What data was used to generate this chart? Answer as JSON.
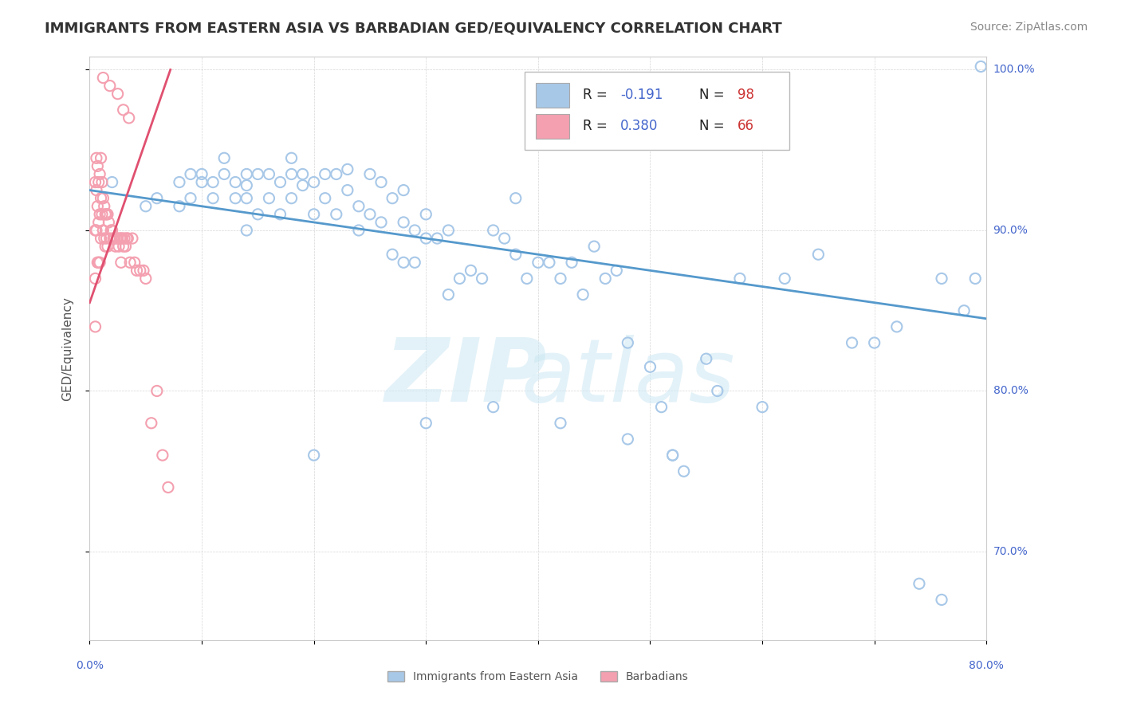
{
  "title": "IMMIGRANTS FROM EASTERN ASIA VS BARBADIAN GED/EQUIVALENCY CORRELATION CHART",
  "source": "Source: ZipAtlas.com",
  "ylabel": "GED/Equivalency",
  "xlim": [
    0.0,
    0.8
  ],
  "ylim": [
    0.645,
    1.008
  ],
  "y_ticks": [
    0.7,
    0.8,
    0.9,
    1.0
  ],
  "y_tick_labels": [
    "70.0%",
    "80.0%",
    "90.0%",
    "100.0%"
  ],
  "blue_color": "#a8c8e8",
  "pink_color": "#f4a0b0",
  "blue_line_color": "#5599cc",
  "pink_line_color": "#e05070",
  "axis_label_color": "#4466cc",
  "n_value_color": "#cc3333",
  "blue_scatter_x": [
    0.02,
    0.05,
    0.06,
    0.08,
    0.08,
    0.09,
    0.09,
    0.1,
    0.1,
    0.11,
    0.11,
    0.12,
    0.12,
    0.13,
    0.13,
    0.14,
    0.14,
    0.14,
    0.15,
    0.15,
    0.16,
    0.16,
    0.17,
    0.17,
    0.18,
    0.18,
    0.18,
    0.19,
    0.19,
    0.2,
    0.2,
    0.21,
    0.21,
    0.22,
    0.22,
    0.23,
    0.23,
    0.24,
    0.24,
    0.25,
    0.25,
    0.26,
    0.26,
    0.27,
    0.27,
    0.28,
    0.28,
    0.29,
    0.29,
    0.3,
    0.3,
    0.31,
    0.32,
    0.33,
    0.34,
    0.35,
    0.36,
    0.37,
    0.38,
    0.39,
    0.4,
    0.41,
    0.42,
    0.43,
    0.44,
    0.45,
    0.46,
    0.47,
    0.48,
    0.5,
    0.51,
    0.52,
    0.53,
    0.55,
    0.56,
    0.58,
    0.6,
    0.62,
    0.65,
    0.68,
    0.7,
    0.72,
    0.74,
    0.76,
    0.78,
    0.79,
    0.795,
    0.76,
    0.52,
    0.38,
    0.3,
    0.28,
    0.36,
    0.42,
    0.48,
    0.32,
    0.2,
    0.14
  ],
  "blue_scatter_y": [
    0.93,
    0.915,
    0.92,
    0.93,
    0.915,
    0.935,
    0.92,
    0.935,
    0.93,
    0.92,
    0.93,
    0.935,
    0.945,
    0.93,
    0.92,
    0.935,
    0.928,
    0.92,
    0.935,
    0.91,
    0.935,
    0.92,
    0.93,
    0.91,
    0.945,
    0.935,
    0.92,
    0.935,
    0.928,
    0.93,
    0.91,
    0.935,
    0.92,
    0.935,
    0.91,
    0.938,
    0.925,
    0.915,
    0.9,
    0.935,
    0.91,
    0.93,
    0.905,
    0.92,
    0.885,
    0.925,
    0.905,
    0.9,
    0.88,
    0.91,
    0.895,
    0.895,
    0.9,
    0.87,
    0.875,
    0.87,
    0.9,
    0.895,
    0.885,
    0.87,
    0.88,
    0.88,
    0.87,
    0.88,
    0.86,
    0.89,
    0.87,
    0.875,
    0.83,
    0.815,
    0.79,
    0.76,
    0.75,
    0.82,
    0.8,
    0.87,
    0.79,
    0.87,
    0.885,
    0.83,
    0.83,
    0.84,
    0.68,
    0.67,
    0.85,
    0.87,
    1.002,
    0.87,
    0.76,
    0.92,
    0.78,
    0.88,
    0.79,
    0.78,
    0.77,
    0.86,
    0.76,
    0.9
  ],
  "pink_scatter_x": [
    0.005,
    0.005,
    0.005,
    0.005,
    0.006,
    0.006,
    0.006,
    0.007,
    0.007,
    0.007,
    0.008,
    0.008,
    0.008,
    0.009,
    0.009,
    0.009,
    0.01,
    0.01,
    0.01,
    0.011,
    0.011,
    0.012,
    0.012,
    0.013,
    0.013,
    0.014,
    0.014,
    0.015,
    0.015,
    0.016,
    0.016,
    0.017,
    0.018,
    0.019,
    0.02,
    0.021,
    0.022,
    0.023,
    0.024,
    0.025,
    0.026,
    0.027,
    0.028,
    0.028,
    0.029,
    0.03,
    0.031,
    0.032,
    0.033,
    0.034,
    0.036,
    0.038,
    0.04,
    0.042,
    0.045,
    0.048,
    0.05,
    0.055,
    0.06,
    0.065,
    0.07,
    0.012,
    0.018,
    0.025,
    0.03,
    0.035
  ],
  "pink_scatter_y": [
    0.93,
    0.9,
    0.87,
    0.84,
    0.945,
    0.925,
    0.9,
    0.94,
    0.915,
    0.88,
    0.93,
    0.905,
    0.88,
    0.935,
    0.91,
    0.88,
    0.945,
    0.92,
    0.895,
    0.93,
    0.91,
    0.92,
    0.9,
    0.915,
    0.895,
    0.91,
    0.89,
    0.91,
    0.895,
    0.91,
    0.89,
    0.905,
    0.895,
    0.9,
    0.9,
    0.895,
    0.895,
    0.89,
    0.895,
    0.895,
    0.89,
    0.895,
    0.895,
    0.88,
    0.895,
    0.89,
    0.895,
    0.89,
    0.895,
    0.895,
    0.88,
    0.895,
    0.88,
    0.875,
    0.875,
    0.875,
    0.87,
    0.78,
    0.8,
    0.76,
    0.74,
    0.995,
    0.99,
    0.985,
    0.975,
    0.97
  ],
  "blue_trend_x": [
    0.0,
    0.8
  ],
  "blue_trend_y": [
    0.925,
    0.845
  ],
  "pink_trend_x": [
    0.0,
    0.072
  ],
  "pink_trend_y": [
    0.855,
    1.0
  ]
}
